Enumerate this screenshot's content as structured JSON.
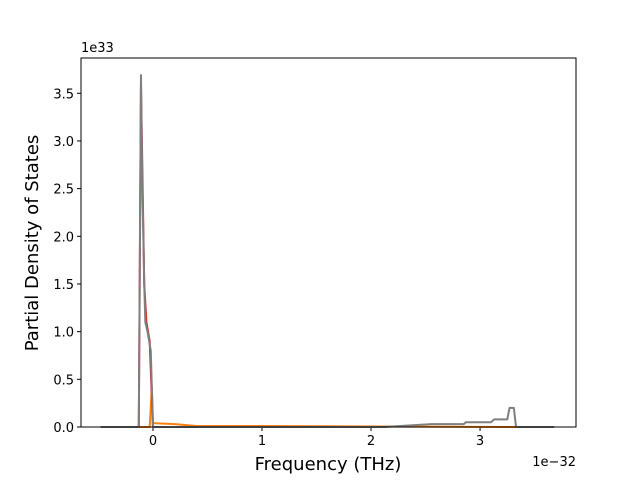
{
  "chart_data": {
    "type": "line",
    "xlabel": "Frequency (THz)",
    "ylabel": "Partial Density of States",
    "x_offset_label": "1e−32",
    "y_offset_label": "1e33",
    "xlim": [
      -0.66,
      3.88
    ],
    "ylim": [
      0,
      3.87
    ],
    "xticks": [
      0,
      1,
      2,
      3
    ],
    "yticks": [
      {
        "value": 0,
        "label": "0.0"
      },
      {
        "value": 0.5,
        "label": "0.5"
      },
      {
        "value": 1,
        "label": "1.0"
      },
      {
        "value": 1.5,
        "label": "1.5"
      },
      {
        "value": 2,
        "label": "2.0"
      },
      {
        "value": 2.5,
        "label": "2.5"
      },
      {
        "value": 3,
        "label": "3.0"
      },
      {
        "value": 3.5,
        "label": "3.5"
      }
    ],
    "series": [
      {
        "color": "#ff7f0e",
        "x": [
          -0.13,
          -0.03,
          -0.01,
          0.0,
          0.2,
          0.4,
          1.0,
          3.35
        ],
        "values": [
          0,
          0,
          0.42,
          0.04,
          0.03,
          0.01,
          0.01,
          0
        ]
      },
      {
        "color": "#d62728",
        "x": [
          -0.13,
          -0.11,
          -0.08,
          -0.06,
          -0.03,
          0.0
        ],
        "values": [
          0,
          3.6,
          1.5,
          1.1,
          0.9,
          0
        ]
      },
      {
        "color": "#7f7f7f",
        "x": [
          -0.48,
          -0.13,
          -0.11,
          -0.1,
          -0.08,
          -0.07,
          -0.05,
          -0.02,
          0.0,
          2.12,
          2.55,
          2.85,
          2.87,
          3.1,
          3.13,
          3.25,
          3.27,
          3.31,
          3.33,
          3.68
        ],
        "values": [
          0,
          0,
          3.69,
          2.7,
          1.5,
          1.1,
          1.0,
          0.8,
          0,
          0,
          0.03,
          0.03,
          0.05,
          0.05,
          0.08,
          0.08,
          0.2,
          0.2,
          0,
          0
        ]
      }
    ]
  }
}
